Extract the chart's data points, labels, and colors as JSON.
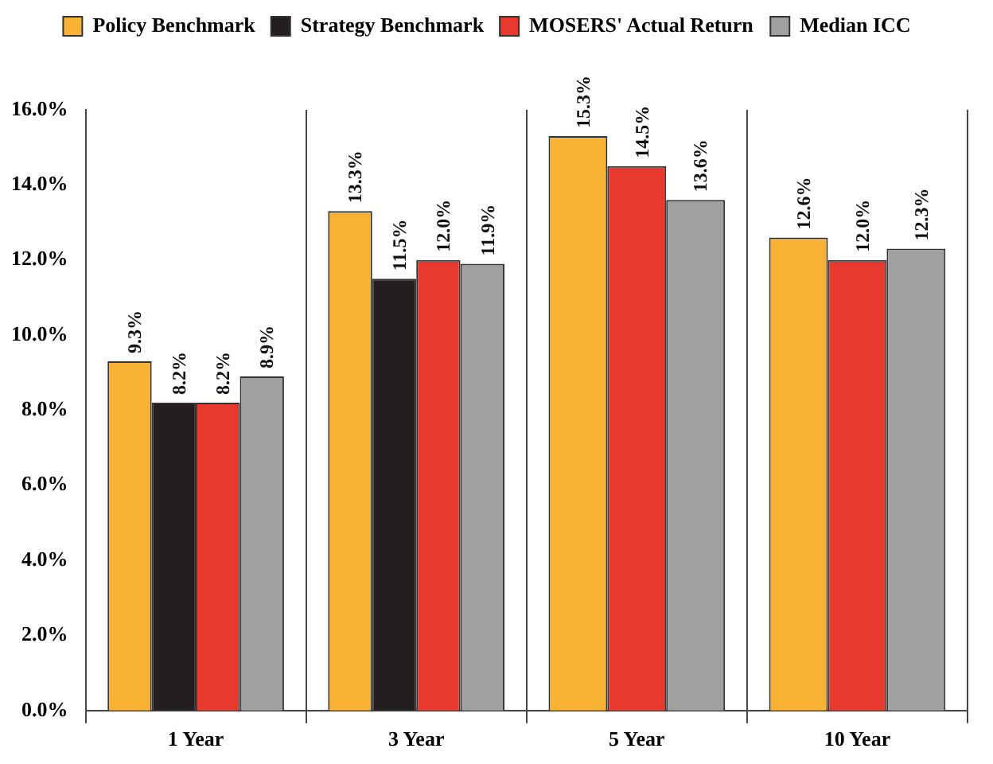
{
  "chart_data": {
    "type": "bar",
    "categories": [
      "1 Year",
      "3 Year",
      "5 Year",
      "10 Year"
    ],
    "series": [
      {
        "name": "Policy Benchmark",
        "color": "#f9b233",
        "values": [
          9.3,
          13.3,
          15.3,
          12.6
        ],
        "value_labels": [
          "9.3%",
          "13.3%",
          "15.3%",
          "12.6%"
        ]
      },
      {
        "name": "Strategy Benchmark",
        "color": "#231f20",
        "values": [
          8.2,
          11.5,
          null,
          null
        ],
        "value_labels": [
          "8.2%",
          "11.5%",
          null,
          null
        ]
      },
      {
        "name": "MOSERS' Actual Return",
        "color": "#e8392f",
        "values": [
          8.2,
          12.0,
          14.5,
          12.0
        ],
        "value_labels": [
          "8.2%",
          "12.0%",
          "14.5%",
          "12.0%"
        ]
      },
      {
        "name": "Median ICC",
        "color": "#a0a0a0",
        "values": [
          8.9,
          11.9,
          13.6,
          12.3
        ],
        "value_labels": [
          "8.9%",
          "11.9%",
          "13.6%",
          "12.3%"
        ]
      }
    ],
    "ylim": [
      0,
      16
    ],
    "yticks": [
      {
        "value": 0,
        "label": "0.0%"
      },
      {
        "value": 2,
        "label": "2.0%"
      },
      {
        "value": 4,
        "label": "4.0%"
      },
      {
        "value": 6,
        "label": "6.0%"
      },
      {
        "value": 8,
        "label": "8.0%"
      },
      {
        "value": 10,
        "label": "10.0%"
      },
      {
        "value": 12,
        "label": "12.0%"
      },
      {
        "value": 14,
        "label": "14.0%"
      },
      {
        "value": 16,
        "label": "16.0%"
      }
    ],
    "grid": "x",
    "legend": "top"
  }
}
